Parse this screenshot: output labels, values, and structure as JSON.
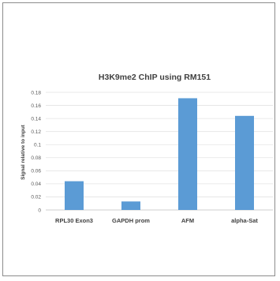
{
  "chart_data": {
    "type": "bar",
    "title": "H3K9me2 ChIP using RM151",
    "ylabel": "Signal relative to input",
    "xlabel": "",
    "categories": [
      "RPL30 Exon3",
      "GAPDH prom",
      "AFM",
      "alpha-Sat"
    ],
    "values": [
      0.044,
      0.013,
      0.171,
      0.144
    ],
    "ylim": [
      0,
      0.18
    ],
    "yticks": [
      "0",
      "0.02",
      "0.04",
      "0.06",
      "0.08",
      "0.1",
      "0.12",
      "0.14",
      "0.16",
      "0.18"
    ],
    "grid": true,
    "legend": "none",
    "bar_color": "#5b9bd5",
    "grid_color": "#e3e3e3"
  }
}
